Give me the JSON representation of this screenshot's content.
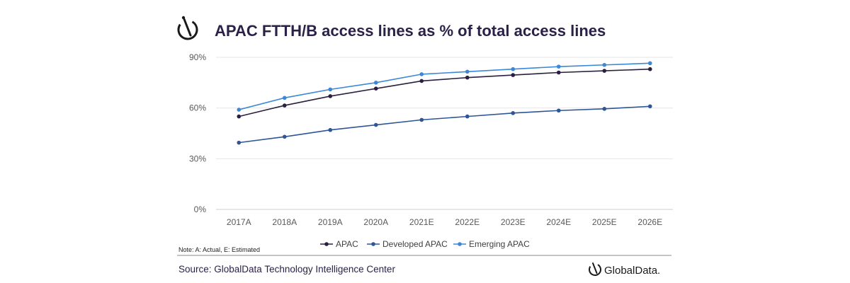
{
  "title": "APAC FTTH/B access lines as % of total access lines",
  "note": "Note: A: Actual, E: Estimated",
  "source": "Source: GlobalData Technology Intelligence Center",
  "brand": "GlobalData.",
  "icons": {
    "header_logo": "globaldata-logo-icon",
    "footer_logo": "globaldata-logo-icon"
  },
  "colors": {
    "title": "#2b2148",
    "APAC": "#2b1f3f",
    "Developed APAC": "#2e5596",
    "Emerging APAC": "#3b87d8"
  },
  "chart_data": {
    "type": "line",
    "categories": [
      "2017A",
      "2018A",
      "2019A",
      "2020A",
      "2021E",
      "2022E",
      "2023E",
      "2024E",
      "2025E",
      "2026E"
    ],
    "series": [
      {
        "name": "APAC",
        "values": [
          55,
          61.5,
          67,
          71.5,
          76,
          78,
          79.5,
          81,
          82,
          83
        ]
      },
      {
        "name": "Developed APAC",
        "values": [
          39.5,
          43,
          47,
          50,
          53,
          55,
          57,
          58.5,
          59.5,
          61
        ]
      },
      {
        "name": "Emerging APAC",
        "values": [
          59,
          66,
          71,
          75,
          80,
          81.5,
          83,
          84.5,
          85.5,
          86.5
        ]
      }
    ],
    "ylim": [
      0,
      90
    ],
    "yticks": [
      0,
      30,
      60,
      90
    ],
    "ytick_labels": [
      "0%",
      "30%",
      "60%",
      "90%"
    ],
    "grid": true,
    "legend": "bottom"
  }
}
